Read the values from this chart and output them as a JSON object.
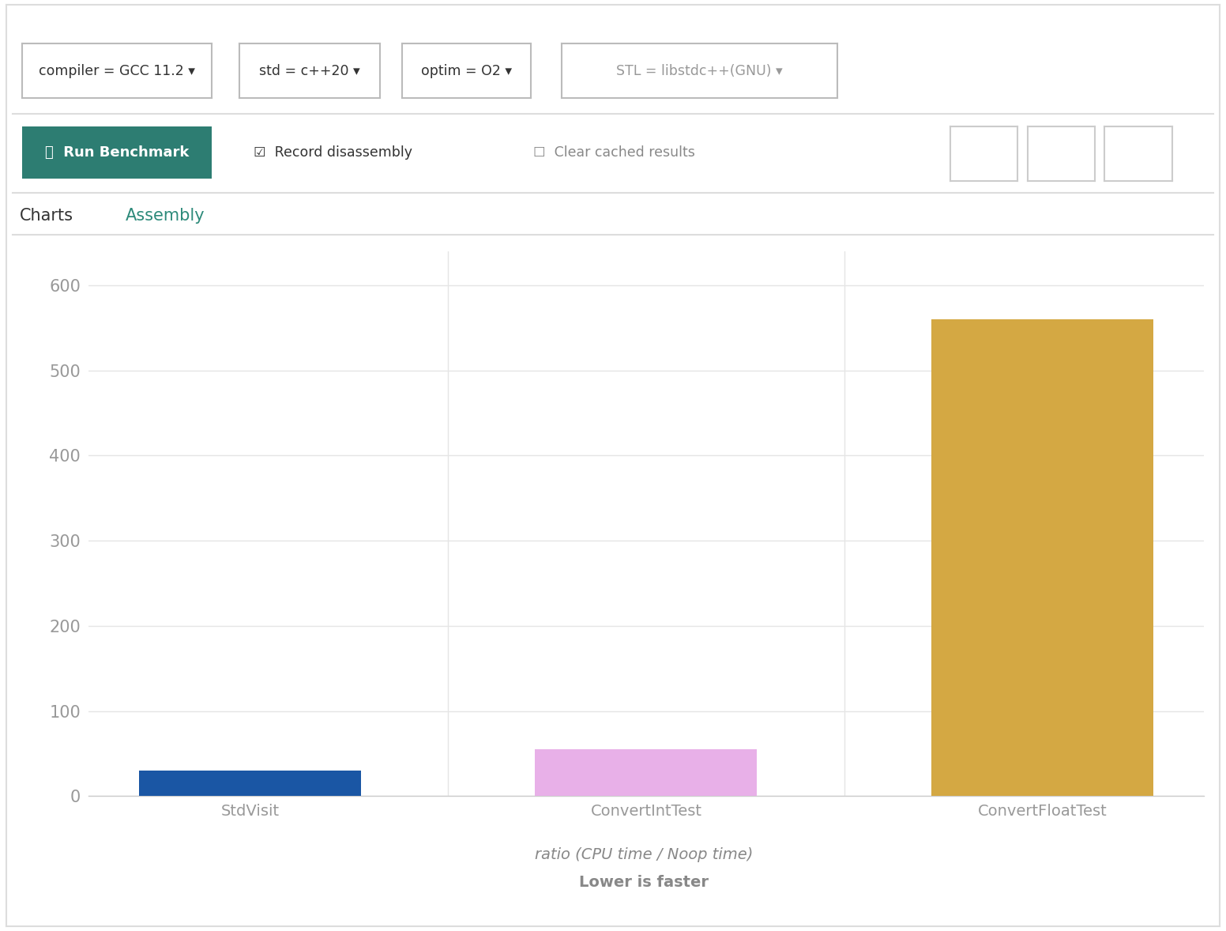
{
  "categories": [
    "StdVisit",
    "ConvertIntTest",
    "ConvertFloatTest"
  ],
  "values": [
    30,
    55,
    560
  ],
  "bar_colors": [
    "#1a56a4",
    "#e8b0e8",
    "#d4a843"
  ],
  "background_color": "#ffffff",
  "plot_bg_color": "#ffffff",
  "grid_color": "#e5e5e5",
  "tick_color": "#999999",
  "xlabel_line1": "ratio (CPU time / Noop time)",
  "xlabel_line2": "Lower is faster",
  "xlabel_fontsize": 14,
  "ylim": [
    0,
    640
  ],
  "yticks": [
    0,
    100,
    200,
    300,
    400,
    500,
    600
  ],
  "tick_fontsize": 15,
  "category_fontsize": 14,
  "run_btn_color": "#2d7d72",
  "assembly_color": "#2d8a7a",
  "compiler_label": "compiler = GCC 11.2 ▾",
  "std_label": "std = c++20 ▾",
  "optim_label": "optim = O2 ▾",
  "stl_label": "STL = libstdc++(GNU) ▾",
  "tab_charts": "Charts",
  "tab_assembly": "Assembly"
}
